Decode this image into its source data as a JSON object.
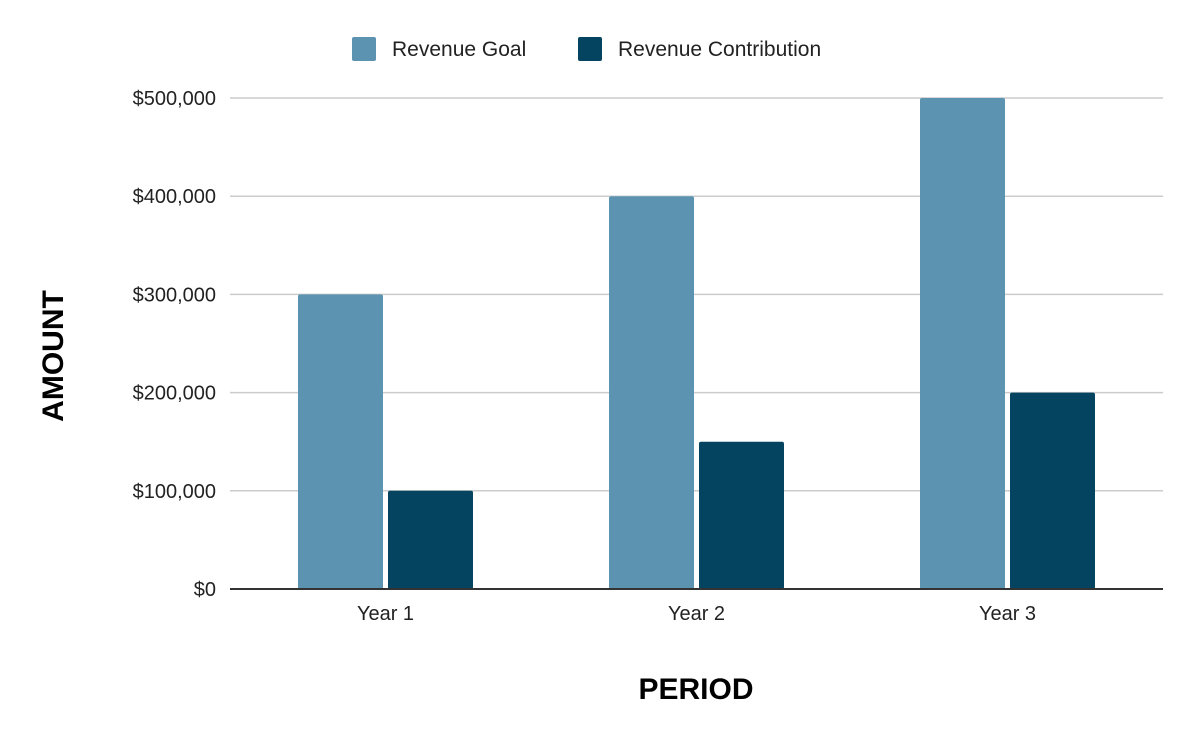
{
  "chart_data": {
    "type": "bar",
    "categories": [
      "Year 1",
      "Year 2",
      "Year 3"
    ],
    "series": [
      {
        "name": "Revenue Goal",
        "values": [
          300000,
          400000,
          500000
        ],
        "color": "#5b93b0"
      },
      {
        "name": "Revenue Contribution",
        "values": [
          100000,
          150000,
          200000
        ],
        "color": "#044461"
      }
    ],
    "title": "",
    "xlabel": "PERIOD",
    "ylabel": "AMOUNT",
    "ylim": [
      0,
      500000
    ],
    "yticks": [
      0,
      100000,
      200000,
      300000,
      400000,
      500000
    ],
    "ytick_labels": [
      "$0",
      "$100,000",
      "$200,000",
      "$300,000",
      "$400,000",
      "$500,000"
    ],
    "grid": true,
    "legend_position": "top"
  }
}
